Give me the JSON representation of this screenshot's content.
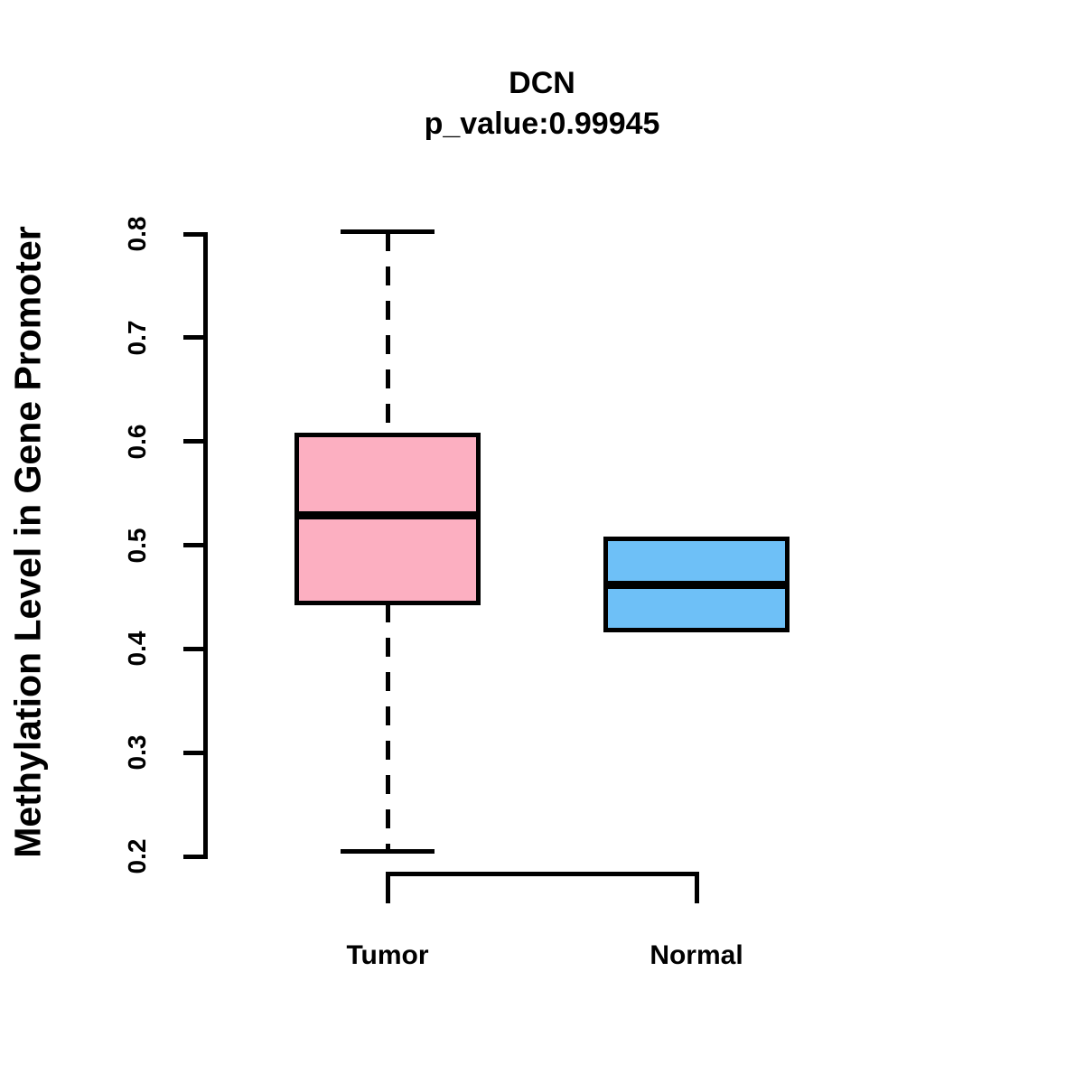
{
  "figure": {
    "background": "#ffffff",
    "text_color": "#000000"
  },
  "chart_data": {
    "type": "boxplot",
    "title": "DCN",
    "subtitle": "p_value:0.99945",
    "ylabel": "Methylation Level in Gene Promoter",
    "xlabel": "",
    "categories": [
      "Tumor",
      "Normal"
    ],
    "ylim": [
      0.2,
      0.8
    ],
    "yticks": [
      {
        "label": "0.2",
        "value": 0.2
      },
      {
        "label": "0.3",
        "value": 0.3
      },
      {
        "label": "0.4",
        "value": 0.4
      },
      {
        "label": "0.5",
        "value": 0.5
      },
      {
        "label": "0.6",
        "value": 0.6
      },
      {
        "label": "0.7",
        "value": 0.7
      },
      {
        "label": "0.8",
        "value": 0.8
      }
    ],
    "grid": false,
    "legend_position": "none",
    "series": [
      {
        "name": "Tumor",
        "fill_color": "#FCAFC1",
        "border_color": "#000000",
        "median_color": "#000000",
        "whisker_low": 0.205,
        "q1": 0.444,
        "median": 0.529,
        "q3": 0.606,
        "whisker_high": 0.802,
        "outliers": []
      },
      {
        "name": "Normal",
        "fill_color": "#6EC0F7",
        "border_color": "#000000",
        "median_color": "#000000",
        "whisker_low": 0.418,
        "q1": 0.418,
        "median": 0.462,
        "q3": 0.506,
        "whisker_high": 0.506,
        "outliers": []
      }
    ]
  }
}
